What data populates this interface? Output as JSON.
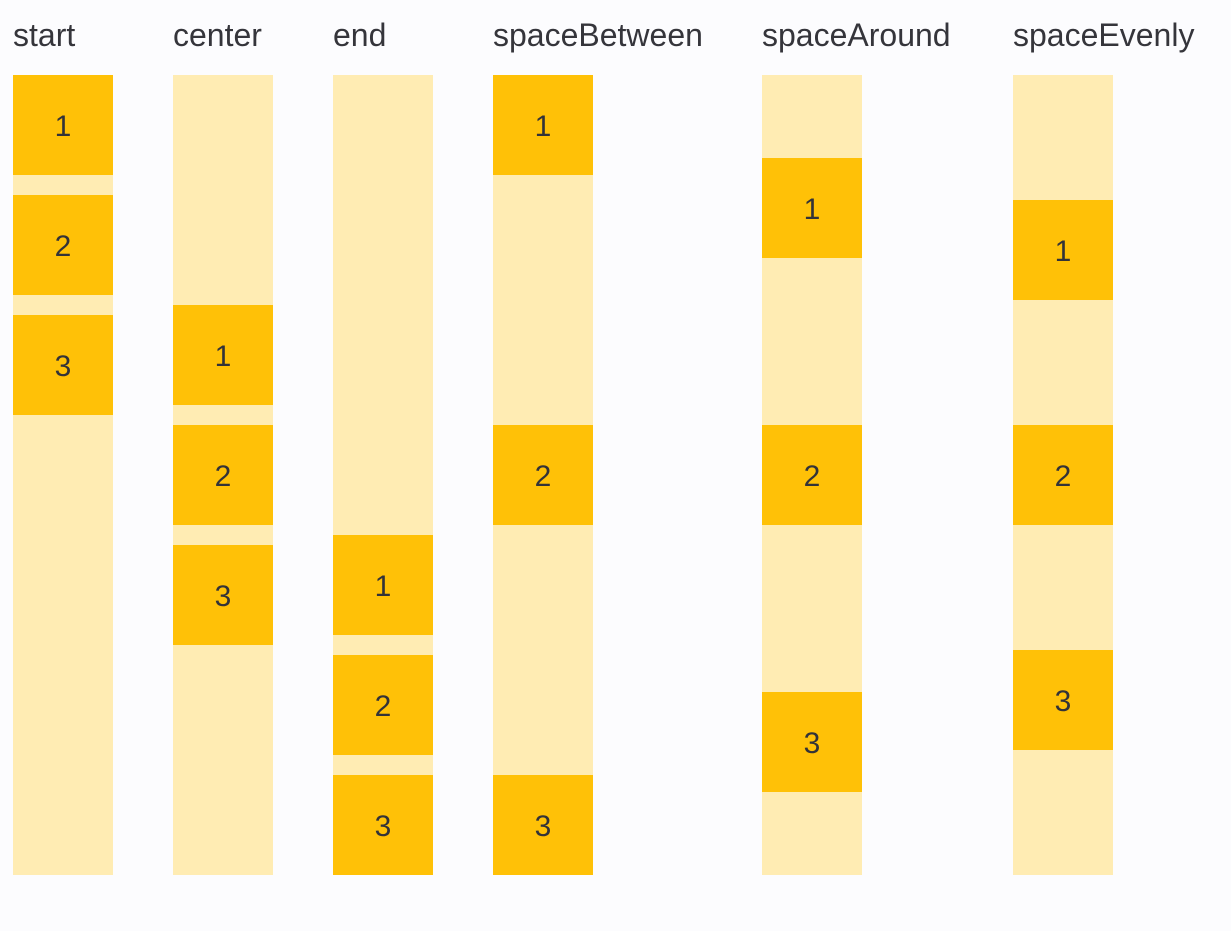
{
  "page": {
    "description_labels": [
      "start",
      "center",
      "end",
      "spaceBetween",
      "spaceAround",
      "spaceEvenly"
    ]
  },
  "colors": {
    "item": "#FFC107",
    "track": "#FFECB3",
    "text": "#35353B",
    "bg": "#FCFCFE"
  },
  "columns": [
    {
      "label": "start",
      "alignment": "flex-start",
      "items": [
        "1",
        "2",
        "3"
      ]
    },
    {
      "label": "center",
      "alignment": "center",
      "items": [
        "1",
        "2",
        "3"
      ]
    },
    {
      "label": "end",
      "alignment": "flex-end",
      "items": [
        "1",
        "2",
        "3"
      ]
    },
    {
      "label": "spaceBetween",
      "alignment": "space-between",
      "items": [
        "1",
        "2",
        "3"
      ]
    },
    {
      "label": "spaceAround",
      "alignment": "space-around",
      "items": [
        "1",
        "2",
        "3"
      ]
    },
    {
      "label": "spaceEvenly",
      "alignment": "space-evenly",
      "items": [
        "1",
        "2",
        "3"
      ]
    }
  ]
}
